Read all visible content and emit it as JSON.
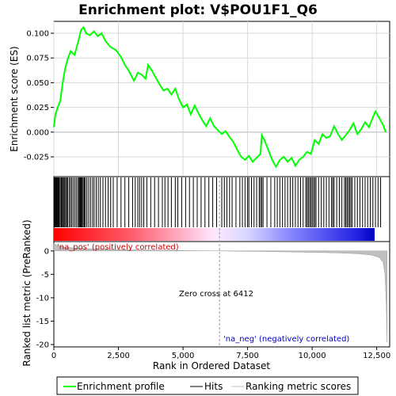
{
  "chart_data": {
    "type": "line",
    "title": "Enrichment plot: V$POU1F1_Q6",
    "xlabel": "Rank in Ordered Dataset",
    "ylabel_top": "Enrichment score (ES)",
    "ylabel_bottom": "Ranked list metric (PreRanked)",
    "xlim": [
      0,
      13000
    ],
    "x_ticks": [
      "0",
      "2,500",
      "5,000",
      "7,500",
      "10,000",
      "12,500"
    ],
    "x_tick_values": [
      0,
      2500,
      5000,
      7500,
      10000,
      12500
    ],
    "es_ylim": [
      -0.045,
      0.112
    ],
    "es_ticks": [
      "0.100",
      "0.075",
      "0.050",
      "0.025",
      "0.000",
      "-0.025"
    ],
    "es_tick_values": [
      0.1,
      0.075,
      0.05,
      0.025,
      0.0,
      -0.025
    ],
    "metric_ylim": [
      -20.5,
      2.0
    ],
    "metric_ticks": [
      "0",
      "-5",
      "-10",
      "-15",
      "-20"
    ],
    "metric_tick_values": [
      0,
      -5,
      -10,
      -15,
      -20
    ],
    "es_curve": [
      [
        0,
        0.005
      ],
      [
        60,
        0.018
      ],
      [
        150,
        0.025
      ],
      [
        250,
        0.032
      ],
      [
        330,
        0.048
      ],
      [
        420,
        0.062
      ],
      [
        520,
        0.073
      ],
      [
        650,
        0.082
      ],
      [
        800,
        0.078
      ],
      [
        950,
        0.092
      ],
      [
        1050,
        0.103
      ],
      [
        1150,
        0.106
      ],
      [
        1250,
        0.1
      ],
      [
        1400,
        0.098
      ],
      [
        1550,
        0.102
      ],
      [
        1700,
        0.097
      ],
      [
        1850,
        0.1
      ],
      [
        2000,
        0.092
      ],
      [
        2200,
        0.086
      ],
      [
        2400,
        0.083
      ],
      [
        2600,
        0.076
      ],
      [
        2750,
        0.068
      ],
      [
        2900,
        0.062
      ],
      [
        3100,
        0.052
      ],
      [
        3250,
        0.06
      ],
      [
        3400,
        0.058
      ],
      [
        3550,
        0.054
      ],
      [
        3650,
        0.068
      ],
      [
        3800,
        0.062
      ],
      [
        3950,
        0.055
      ],
      [
        4100,
        0.048
      ],
      [
        4250,
        0.042
      ],
      [
        4400,
        0.044
      ],
      [
        4550,
        0.038
      ],
      [
        4700,
        0.044
      ],
      [
        4850,
        0.033
      ],
      [
        5000,
        0.025
      ],
      [
        5150,
        0.028
      ],
      [
        5300,
        0.018
      ],
      [
        5450,
        0.027
      ],
      [
        5600,
        0.019
      ],
      [
        5750,
        0.012
      ],
      [
        5900,
        0.006
      ],
      [
        6050,
        0.014
      ],
      [
        6200,
        0.006
      ],
      [
        6350,
        0.002
      ],
      [
        6500,
        -0.002
      ],
      [
        6650,
        0.001
      ],
      [
        6800,
        -0.005
      ],
      [
        6950,
        -0.01
      ],
      [
        7100,
        -0.018
      ],
      [
        7250,
        -0.025
      ],
      [
        7400,
        -0.028
      ],
      [
        7550,
        -0.024
      ],
      [
        7700,
        -0.03
      ],
      [
        7850,
        -0.026
      ],
      [
        8000,
        -0.022
      ],
      [
        8050,
        -0.003
      ],
      [
        8150,
        -0.008
      ],
      [
        8300,
        -0.018
      ],
      [
        8450,
        -0.028
      ],
      [
        8600,
        -0.035
      ],
      [
        8750,
        -0.028
      ],
      [
        8900,
        -0.025
      ],
      [
        9050,
        -0.03
      ],
      [
        9200,
        -0.026
      ],
      [
        9350,
        -0.034
      ],
      [
        9500,
        -0.028
      ],
      [
        9650,
        -0.025
      ],
      [
        9800,
        -0.02
      ],
      [
        9950,
        -0.022
      ],
      [
        10100,
        -0.008
      ],
      [
        10250,
        -0.012
      ],
      [
        10400,
        -0.002
      ],
      [
        10550,
        -0.006
      ],
      [
        10700,
        -0.004
      ],
      [
        10850,
        0.006
      ],
      [
        11000,
        -0.002
      ],
      [
        11150,
        -0.008
      ],
      [
        11300,
        -0.003
      ],
      [
        11450,
        0.002
      ],
      [
        11600,
        0.009
      ],
      [
        11750,
        -0.002
      ],
      [
        11900,
        0.003
      ],
      [
        12050,
        0.01
      ],
      [
        12200,
        0.005
      ],
      [
        12350,
        0.015
      ],
      [
        12450,
        0.021
      ],
      [
        12600,
        0.014
      ],
      [
        12750,
        0.007
      ],
      [
        12850,
        0.0
      ]
    ],
    "hits": [
      30,
      60,
      90,
      110,
      140,
      170,
      200,
      240,
      280,
      310,
      340,
      380,
      420,
      460,
      500,
      540,
      600,
      650,
      700,
      760,
      820,
      880,
      940,
      980,
      1010,
      1040,
      1070,
      1100,
      1140,
      1180,
      1220,
      1280,
      1350,
      1420,
      1500,
      1560,
      1640,
      1720,
      1800,
      1900,
      2000,
      2100,
      2200,
      2300,
      2450,
      2600,
      2750,
      2900,
      3050,
      3150,
      3250,
      3320,
      3400,
      3480,
      3600,
      3750,
      3900,
      4050,
      4200,
      4300,
      4420,
      4550,
      4700,
      4800,
      4950,
      5100,
      5250,
      5400,
      5550,
      5700,
      5850,
      6000,
      6150,
      6300,
      6500,
      6600,
      6700,
      6800,
      6900,
      7050,
      7200,
      7300,
      7400,
      7500,
      7550,
      7650,
      7750,
      7850,
      7950,
      8000,
      8050,
      8100,
      8250,
      8400,
      8550,
      8650,
      8750,
      8850,
      8950,
      9050,
      9150,
      9250,
      9350,
      9450,
      9550,
      9650,
      9750,
      9800,
      9850,
      9900,
      9950,
      10000,
      10050,
      10100,
      10150,
      10250,
      10350,
      10450,
      10550,
      10650,
      10750,
      10800,
      10850,
      10950,
      11050,
      11150,
      11250,
      11300,
      11350,
      11400,
      11450,
      11500,
      11550,
      11650,
      11750,
      11850,
      11950,
      12050,
      12150,
      12250,
      12350,
      12450,
      12550,
      12650
    ],
    "metric_curve": [
      [
        0,
        1.6
      ],
      [
        80,
        1.3
      ],
      [
        200,
        1.0
      ],
      [
        500,
        0.75
      ],
      [
        1000,
        0.55
      ],
      [
        2000,
        0.35
      ],
      [
        3000,
        0.22
      ],
      [
        4000,
        0.14
      ],
      [
        5000,
        0.07
      ],
      [
        6000,
        0.02
      ],
      [
        6412,
        0.0
      ],
      [
        7000,
        -0.05
      ],
      [
        8000,
        -0.12
      ],
      [
        9000,
        -0.2
      ],
      [
        10000,
        -0.3
      ],
      [
        11000,
        -0.42
      ],
      [
        11800,
        -0.6
      ],
      [
        12300,
        -0.9
      ],
      [
        12600,
        -1.4
      ],
      [
        12750,
        -2.5
      ],
      [
        12820,
        -5.0
      ],
      [
        12870,
        -12.0
      ],
      [
        12900,
        -19.5
      ]
    ],
    "annotations": {
      "pos_label": "'na_pos' (positively correlated)",
      "neg_label": "'na_neg' (negatively correlated)",
      "zero_cross": "Zero cross at 6412",
      "zero_cross_value": 6412
    },
    "legend": {
      "placement": "bottom",
      "items": [
        "Enrichment profile",
        "Hits",
        "Ranking metric scores"
      ]
    },
    "colors": {
      "es_line": "#00ff00",
      "hit_line": "#000000",
      "metric_fill": "#bfbfbf",
      "pos_label": "#cc0000",
      "neg_label": "#0000cc",
      "zero_line": "#999999"
    }
  }
}
